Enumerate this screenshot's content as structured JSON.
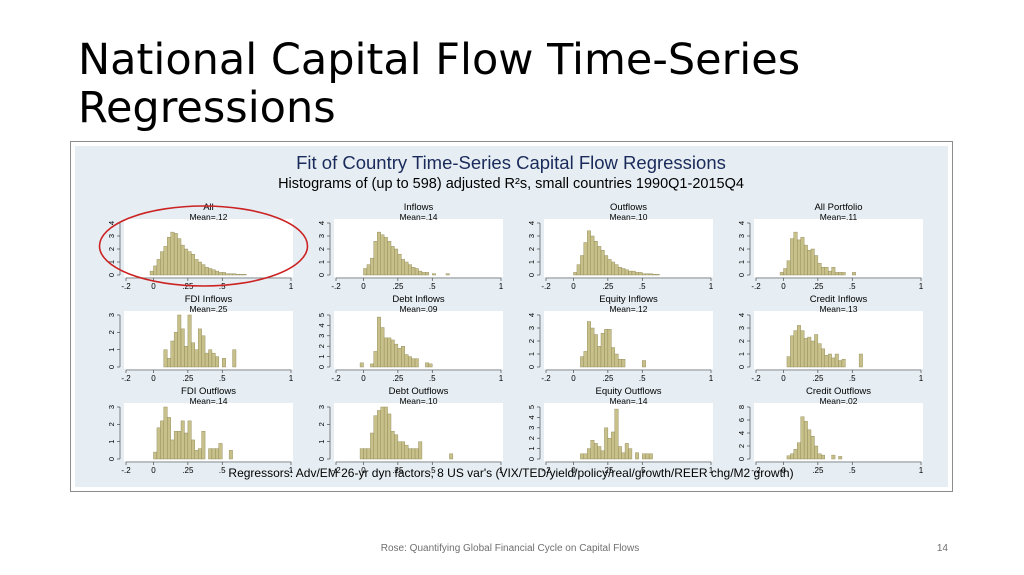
{
  "slide": {
    "title": "National Capital Flow Time-Series Regressions",
    "footer": "Rose: Quantifying Global Financial Cycle on Capital Flows",
    "page_number": "14"
  },
  "colors": {
    "bar_fill": "#c8c08a",
    "bar_stroke": "#8a8450",
    "plot_bg": "#ffffff",
    "figure_bg": "#e6eef3",
    "highlight_circle": "#cc2222"
  },
  "chart_data": {
    "type": "bar",
    "title": "Fit of Country Time-Series Capital Flow Regressions",
    "subtitle": "Histograms of (up to 598) adjusted R²s, small countries 1990Q1-2015Q4",
    "note": "Regressors: Adv/EM 26-yr dyn factors, 8 US var's (VIX/TED/yield/policy/real/growth/REER chg/M2 growth)",
    "xlim": [
      -0.2,
      1
    ],
    "xticks": [
      -0.2,
      0,
      0.25,
      0.5,
      1
    ],
    "xtick_labels": [
      "-.2",
      "0",
      ".25",
      ".5",
      "1"
    ],
    "bin_width": 0.025,
    "bin_start": -0.2,
    "highlighted_panel": "All",
    "panels": [
      {
        "name": "All",
        "mean_label": "Mean=.12",
        "ylim": [
          0,
          4
        ],
        "yticks": [
          "0",
          "1",
          "2",
          "3",
          "4"
        ],
        "values": [
          0,
          0,
          0,
          0,
          0,
          0,
          0,
          0.3,
          0.7,
          1.2,
          1.8,
          2.2,
          2.9,
          3.3,
          3.2,
          2.8,
          2.3,
          2.0,
          1.8,
          1.6,
          1.2,
          1.0,
          0.8,
          0.6,
          0.5,
          0.4,
          0.3,
          0.2,
          0.2,
          0.1,
          0.1,
          0.1,
          0.05,
          0.05,
          0.05,
          0,
          0,
          0,
          0,
          0,
          0,
          0,
          0,
          0,
          0,
          0,
          0,
          0
        ]
      },
      {
        "name": "Inflows",
        "mean_label": "Mean=.14",
        "ylim": [
          0,
          4
        ],
        "yticks": [
          "0",
          "1",
          "2",
          "3",
          "4"
        ],
        "values": [
          0,
          0,
          0,
          0,
          0,
          0,
          0,
          0,
          0.5,
          0.8,
          1.3,
          2.6,
          3.3,
          3.1,
          2.9,
          2.6,
          2.2,
          2.0,
          1.6,
          1.2,
          1.0,
          0.8,
          0.6,
          0.5,
          0.3,
          0.2,
          0.2,
          0,
          0.1,
          0,
          0,
          0,
          0.1,
          0,
          0,
          0,
          0,
          0,
          0,
          0,
          0,
          0,
          0,
          0,
          0,
          0,
          0,
          0
        ]
      },
      {
        "name": "Outflows",
        "mean_label": "Mean=.10",
        "ylim": [
          0,
          4
        ],
        "yticks": [
          "0",
          "1",
          "2",
          "3",
          "4"
        ],
        "values": [
          0,
          0,
          0,
          0,
          0,
          0,
          0,
          0,
          0.2,
          0.8,
          1.5,
          2.5,
          3.4,
          3.0,
          2.6,
          2.2,
          1.9,
          1.5,
          1.2,
          1.0,
          0.8,
          0.6,
          0.5,
          0.4,
          0.3,
          0.3,
          0.2,
          0.2,
          0.1,
          0.1,
          0.1,
          0.05,
          0.05,
          0,
          0,
          0,
          0,
          0,
          0,
          0,
          0,
          0,
          0,
          0,
          0,
          0,
          0,
          0
        ]
      },
      {
        "name": "All Portfolio",
        "mean_label": "Mean=.11",
        "ylim": [
          0,
          4
        ],
        "yticks": [
          "0",
          "1",
          "2",
          "3",
          "4"
        ],
        "values": [
          0,
          0,
          0,
          0,
          0,
          0,
          0,
          0.2,
          0.5,
          1.1,
          2.8,
          3.3,
          2.7,
          2.9,
          2.3,
          1.9,
          2.0,
          1.5,
          0.9,
          0.6,
          0.6,
          0.3,
          0.6,
          0.2,
          0.2,
          0.2,
          0,
          0,
          0.2,
          0,
          0,
          0,
          0,
          0,
          0,
          0,
          0,
          0,
          0,
          0,
          0,
          0,
          0,
          0,
          0,
          0,
          0,
          0
        ]
      },
      {
        "name": "FDI Inflows",
        "mean_label": "Mean=.25",
        "ylim": [
          0,
          3
        ],
        "yticks": [
          "0",
          "1",
          "2",
          "3"
        ],
        "values": [
          0,
          0,
          0,
          0,
          0,
          0,
          0,
          0,
          0,
          0,
          0,
          1.0,
          0.5,
          1.5,
          2.0,
          3.0,
          2.2,
          1.2,
          3.0,
          1.4,
          1.0,
          2.2,
          1.8,
          0.8,
          1.0,
          0.8,
          0.6,
          0,
          0.5,
          0,
          0,
          1.0,
          0,
          0,
          0,
          0,
          0,
          0,
          0,
          0,
          0,
          0,
          0,
          0,
          0,
          0,
          0,
          0
        ]
      },
      {
        "name": "Debt Inflows",
        "mean_label": "Mean=.09",
        "ylim": [
          0,
          5
        ],
        "yticks": [
          "0",
          "1",
          "2",
          "3",
          "4",
          "5"
        ],
        "values": [
          0,
          0,
          0,
          0,
          0,
          0,
          0,
          0.4,
          0,
          0,
          0.3,
          1.5,
          4.8,
          3.8,
          2.8,
          2.8,
          2.6,
          2.2,
          1.8,
          2.0,
          1.2,
          1.0,
          0.8,
          0.8,
          0,
          0,
          0.4,
          0.3,
          0,
          0,
          0,
          0,
          0,
          0,
          0,
          0,
          0,
          0,
          0,
          0,
          0,
          0,
          0,
          0,
          0,
          0,
          0,
          0
        ]
      },
      {
        "name": "Equity Inflows",
        "mean_label": "Mean=.12",
        "ylim": [
          0,
          4
        ],
        "yticks": [
          "0",
          "1",
          "2",
          "3",
          "4"
        ],
        "values": [
          0,
          0,
          0,
          0,
          0,
          0,
          0,
          0,
          0,
          0,
          0.8,
          1.2,
          3.5,
          3.0,
          2.5,
          1.6,
          2.6,
          2.9,
          2.9,
          1.5,
          1.0,
          0.6,
          0.6,
          0,
          0,
          0,
          0,
          0,
          0.5,
          0,
          0,
          0,
          0,
          0,
          0,
          0,
          0,
          0,
          0,
          0,
          0,
          0,
          0,
          0,
          0,
          0,
          0,
          0
        ]
      },
      {
        "name": "Credit Inflows",
        "mean_label": "Mean=.13",
        "ylim": [
          0,
          4
        ],
        "yticks": [
          "0",
          "1",
          "2",
          "3",
          "4"
        ],
        "values": [
          0,
          0,
          0,
          0,
          0,
          0,
          0,
          0,
          0,
          0.8,
          2.4,
          2.8,
          3.2,
          2.8,
          2.2,
          2.3,
          2.0,
          2.5,
          1.8,
          1.4,
          0.9,
          1.0,
          0.7,
          1.0,
          0.5,
          0.6,
          0,
          0,
          0,
          0,
          1.0,
          0,
          0,
          0,
          0,
          0,
          0,
          0,
          0,
          0,
          0,
          0,
          0,
          0,
          0,
          0,
          0,
          0
        ]
      },
      {
        "name": "FDI Outflows",
        "mean_label": "Mean=.14",
        "ylim": [
          0,
          3
        ],
        "yticks": [
          "0",
          "1",
          "2",
          "3"
        ],
        "values": [
          0,
          0,
          0,
          0,
          0,
          0,
          0,
          0,
          0.4,
          1.8,
          2.2,
          3.0,
          2.4,
          1.1,
          1.6,
          1.6,
          2.2,
          1.5,
          2.2,
          1.1,
          0.5,
          0.6,
          1.6,
          0,
          0.6,
          0.6,
          0.6,
          0.9,
          0,
          0,
          0.5,
          0,
          0,
          0,
          0,
          0,
          0,
          0,
          0,
          0,
          0,
          0,
          0,
          0,
          0,
          0,
          0,
          0
        ]
      },
      {
        "name": "Debt Outflows",
        "mean_label": "Mean=.10",
        "ylim": [
          0,
          3
        ],
        "yticks": [
          "0",
          "1",
          "2",
          "3"
        ],
        "values": [
          0,
          0,
          0,
          0,
          0,
          0,
          0,
          0.6,
          0.6,
          0.6,
          1.5,
          2.5,
          2.8,
          3.0,
          3.0,
          2.6,
          1.6,
          1.4,
          1.0,
          1.0,
          0.8,
          0.6,
          0.6,
          0.6,
          1.0,
          0,
          0,
          0,
          0,
          0,
          0,
          0,
          0,
          0.3,
          0,
          0,
          0,
          0,
          0,
          0,
          0,
          0,
          0,
          0,
          0,
          0,
          0,
          0
        ]
      },
      {
        "name": "Equity Outflows",
        "mean_label": "Mean=.14",
        "ylim": [
          0,
          5
        ],
        "yticks": [
          "0",
          "1",
          "2",
          "3",
          "4",
          "5"
        ],
        "values": [
          0,
          0,
          0,
          0,
          0,
          0,
          0,
          0,
          0,
          0,
          0.5,
          0.5,
          1.0,
          1.8,
          1.5,
          1.2,
          0.8,
          3.0,
          2.0,
          2.6,
          4.8,
          1.2,
          0.6,
          1.5,
          1.0,
          0,
          0.6,
          0,
          0.5,
          0.5,
          0.5,
          0,
          0,
          0,
          0,
          0,
          0,
          0,
          0,
          0,
          0,
          0,
          0,
          0,
          0,
          0,
          0,
          0
        ]
      },
      {
        "name": "Credit Outflows",
        "mean_label": "Mean=.02",
        "ylim": [
          0,
          8
        ],
        "yticks": [
          "0",
          "2",
          "4",
          "6",
          "8"
        ],
        "values": [
          0,
          0,
          0,
          0,
          0,
          0,
          0,
          0,
          0,
          0.5,
          0.8,
          1.5,
          2.5,
          6.5,
          5.8,
          4.5,
          3.5,
          2.0,
          0.8,
          0.6,
          0,
          0,
          0.6,
          0,
          0.4,
          0,
          0,
          0,
          0,
          0,
          0,
          0,
          0,
          0,
          0,
          0,
          0,
          0,
          0,
          0,
          0,
          0,
          0,
          0,
          0,
          0,
          0,
          0
        ]
      }
    ]
  }
}
